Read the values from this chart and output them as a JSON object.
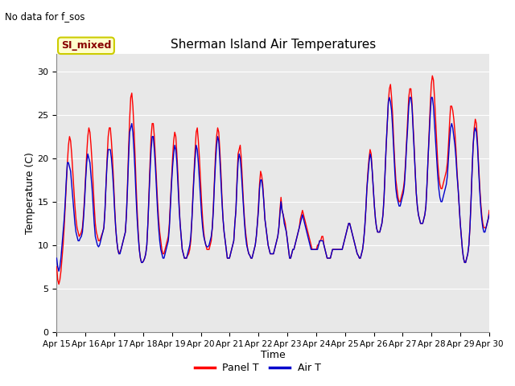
{
  "title": "Sherman Island Air Temperatures",
  "subtitle": "No data for f_sos",
  "xlabel": "Time",
  "ylabel": "Temperature (C)",
  "ylim": [
    0,
    32
  ],
  "yticks": [
    0,
    5,
    10,
    15,
    20,
    25,
    30
  ],
  "bg_color": "#e8e8e8",
  "fig_color": "#ffffff",
  "line1_color": "#ff0000",
  "line2_color": "#0000cc",
  "legend_label1": "Panel T",
  "legend_label2": "Air T",
  "box_label": "SI_mixed",
  "box_facecolor": "#ffffcc",
  "box_edgecolor": "#cccc00",
  "box_text_color": "#880000",
  "x_tick_labels": [
    "Apr 15",
    "Apr 16",
    "Apr 17",
    "Apr 18",
    "Apr 19",
    "Apr 20",
    "Apr 21",
    "Apr 22",
    "Apr 23",
    "Apr 24",
    "Apr 25",
    "Apr 26",
    "Apr 27",
    "Apr 28",
    "Apr 29",
    "Apr 30"
  ],
  "panel_T": [
    7.5,
    6.0,
    5.5,
    6.0,
    7.0,
    8.5,
    10.0,
    12.0,
    14.5,
    17.0,
    19.5,
    21.5,
    22.5,
    22.0,
    20.5,
    18.5,
    16.5,
    14.5,
    13.0,
    12.0,
    11.5,
    11.0,
    11.2,
    11.5,
    12.0,
    13.5,
    15.5,
    18.0,
    20.5,
    22.5,
    23.5,
    23.0,
    21.5,
    19.5,
    17.0,
    14.5,
    12.5,
    11.5,
    11.0,
    10.5,
    10.5,
    10.8,
    11.2,
    11.5,
    12.0,
    14.0,
    17.0,
    20.0,
    22.5,
    23.5,
    23.5,
    22.0,
    20.0,
    17.5,
    14.5,
    12.0,
    10.5,
    9.5,
    9.0,
    9.2,
    9.5,
    10.0,
    10.5,
    11.0,
    11.5,
    13.5,
    17.0,
    21.0,
    24.5,
    27.0,
    27.5,
    26.0,
    23.5,
    20.5,
    17.0,
    14.0,
    11.5,
    9.5,
    8.5,
    8.0,
    8.0,
    8.2,
    8.5,
    9.0,
    10.0,
    12.5,
    16.0,
    19.5,
    22.5,
    24.0,
    24.0,
    22.5,
    20.0,
    17.5,
    15.0,
    13.0,
    11.5,
    10.5,
    9.5,
    9.0,
    9.0,
    9.5,
    10.0,
    10.5,
    11.0,
    12.5,
    15.0,
    17.5,
    20.0,
    22.0,
    23.0,
    22.5,
    20.5,
    18.0,
    15.0,
    12.5,
    11.0,
    9.5,
    9.0,
    8.5,
    8.5,
    8.5,
    8.8,
    9.0,
    9.5,
    10.5,
    13.0,
    16.0,
    18.5,
    21.0,
    23.0,
    23.5,
    22.0,
    20.0,
    17.5,
    15.0,
    13.0,
    11.5,
    10.5,
    10.0,
    9.5,
    9.5,
    9.5,
    10.0,
    10.5,
    12.0,
    14.5,
    17.5,
    20.5,
    22.5,
    23.5,
    23.0,
    21.0,
    18.5,
    15.5,
    13.0,
    11.5,
    10.5,
    9.5,
    8.5,
    8.5,
    8.5,
    9.0,
    9.5,
    10.0,
    10.5,
    12.5,
    14.0,
    17.5,
    20.5,
    21.0,
    21.5,
    20.0,
    17.5,
    15.0,
    13.0,
    11.5,
    10.5,
    9.5,
    9.0,
    8.8,
    8.5,
    8.5,
    9.0,
    9.5,
    10.0,
    11.0,
    12.5,
    14.5,
    17.0,
    18.5,
    18.0,
    17.0,
    15.0,
    13.0,
    12.0,
    11.0,
    10.0,
    9.5,
    9.0,
    9.0,
    9.0,
    9.0,
    9.5,
    10.0,
    10.5,
    11.0,
    12.0,
    14.0,
    15.5,
    14.0,
    13.5,
    13.0,
    12.5,
    11.5,
    10.5,
    9.5,
    8.5,
    8.5,
    9.0,
    9.5,
    9.5,
    10.0,
    10.5,
    11.0,
    11.5,
    12.0,
    13.0,
    13.5,
    14.0,
    13.5,
    13.0,
    12.5,
    12.0,
    11.5,
    11.0,
    10.5,
    10.0,
    9.5,
    9.5,
    9.5,
    9.5,
    9.5,
    10.0,
    10.0,
    10.5,
    10.5,
    11.0,
    11.0,
    10.0,
    9.5,
    9.0,
    8.5,
    8.5,
    8.5,
    8.5,
    9.0,
    9.5,
    9.5,
    9.5,
    9.5,
    9.5,
    9.5,
    9.5,
    9.5,
    9.5,
    9.5,
    10.0,
    10.5,
    11.0,
    11.5,
    12.0,
    12.5,
    12.5,
    12.0,
    11.5,
    11.0,
    10.5,
    10.0,
    9.5,
    9.0,
    8.8,
    8.5,
    8.5,
    9.0,
    9.5,
    10.5,
    12.0,
    14.0,
    16.5,
    18.5,
    20.0,
    21.0,
    20.5,
    18.5,
    16.5,
    14.5,
    13.0,
    12.0,
    11.5,
    11.5,
    11.5,
    12.0,
    12.5,
    13.5,
    15.5,
    18.5,
    21.5,
    24.0,
    26.5,
    28.0,
    28.5,
    27.0,
    25.0,
    22.0,
    19.5,
    17.5,
    16.5,
    15.5,
    15.0,
    15.0,
    15.5,
    16.0,
    16.5,
    17.5,
    19.5,
    22.0,
    24.5,
    27.0,
    28.0,
    28.0,
    26.5,
    24.0,
    21.5,
    18.5,
    16.0,
    14.5,
    13.5,
    13.0,
    12.5,
    12.5,
    12.5,
    13.0,
    13.5,
    14.5,
    17.0,
    20.0,
    23.0,
    26.0,
    28.5,
    29.5,
    29.0,
    27.0,
    24.5,
    22.0,
    19.5,
    18.0,
    17.0,
    16.5,
    16.5,
    17.0,
    17.5,
    18.0,
    18.5,
    19.5,
    21.5,
    24.0,
    26.0,
    26.0,
    25.5,
    24.5,
    23.0,
    21.0,
    18.5,
    16.5,
    14.5,
    12.5,
    11.0,
    9.5,
    8.5,
    8.0,
    8.0,
    8.5,
    9.0,
    10.0,
    12.0,
    15.0,
    18.5,
    21.5,
    23.5,
    24.5,
    24.0,
    22.0,
    19.5,
    17.0,
    15.0,
    13.5,
    12.5,
    12.0,
    12.0,
    12.0,
    12.5,
    13.0,
    14.0
  ],
  "air_T": [
    8.5,
    7.5,
    7.0,
    7.5,
    8.5,
    10.0,
    11.5,
    13.0,
    15.0,
    17.5,
    19.5,
    19.5,
    19.0,
    18.5,
    17.0,
    15.5,
    14.0,
    12.5,
    11.5,
    11.0,
    10.5,
    10.5,
    10.8,
    11.0,
    11.5,
    13.0,
    15.0,
    17.5,
    19.5,
    20.5,
    20.0,
    19.5,
    18.0,
    16.5,
    14.5,
    12.5,
    11.0,
    10.5,
    10.0,
    9.8,
    10.0,
    10.5,
    11.0,
    11.5,
    12.0,
    14.0,
    17.0,
    19.5,
    21.0,
    21.0,
    21.0,
    20.0,
    18.5,
    16.5,
    14.0,
    12.0,
    10.5,
    9.5,
    9.0,
    9.0,
    9.5,
    10.0,
    10.5,
    11.0,
    11.5,
    13.5,
    16.5,
    20.0,
    23.0,
    23.5,
    24.0,
    23.0,
    21.0,
    18.5,
    15.5,
    13.0,
    11.0,
    9.5,
    8.5,
    8.0,
    8.0,
    8.2,
    8.5,
    9.0,
    10.0,
    12.5,
    15.5,
    18.5,
    21.0,
    22.5,
    22.5,
    21.0,
    19.0,
    16.5,
    14.0,
    12.0,
    10.5,
    9.5,
    9.0,
    8.5,
    8.5,
    9.0,
    9.5,
    10.0,
    10.5,
    12.0,
    14.5,
    17.0,
    19.0,
    20.5,
    21.5,
    21.0,
    19.5,
    17.0,
    14.5,
    12.5,
    11.0,
    9.5,
    9.0,
    8.5,
    8.5,
    8.5,
    9.0,
    9.5,
    10.0,
    11.0,
    13.0,
    15.5,
    18.0,
    20.0,
    21.5,
    21.0,
    19.5,
    17.5,
    15.5,
    13.5,
    12.0,
    11.0,
    10.5,
    10.0,
    9.8,
    9.8,
    10.0,
    10.5,
    11.0,
    12.0,
    14.0,
    17.0,
    19.5,
    21.5,
    22.5,
    22.0,
    20.0,
    17.5,
    15.0,
    13.0,
    11.5,
    10.5,
    9.5,
    8.5,
    8.5,
    8.5,
    9.0,
    9.5,
    10.0,
    10.5,
    12.5,
    14.0,
    17.0,
    19.5,
    20.5,
    20.0,
    18.5,
    16.5,
    14.5,
    12.5,
    11.0,
    10.0,
    9.5,
    9.0,
    8.8,
    8.5,
    8.5,
    9.0,
    9.5,
    10.0,
    11.0,
    12.5,
    14.0,
    16.5,
    17.5,
    17.5,
    16.5,
    15.0,
    13.0,
    12.0,
    11.0,
    10.0,
    9.5,
    9.0,
    9.0,
    9.0,
    9.0,
    9.5,
    10.0,
    10.5,
    11.0,
    12.0,
    13.5,
    15.0,
    14.0,
    13.5,
    12.5,
    12.0,
    11.5,
    10.5,
    9.5,
    8.5,
    8.5,
    9.0,
    9.5,
    9.5,
    10.0,
    10.5,
    11.0,
    11.5,
    12.0,
    12.5,
    13.0,
    13.5,
    13.0,
    12.5,
    12.0,
    11.5,
    11.0,
    10.5,
    10.0,
    9.5,
    9.5,
    9.5,
    9.5,
    9.5,
    9.5,
    9.5,
    10.0,
    10.5,
    10.5,
    10.5,
    10.5,
    10.0,
    9.5,
    9.0,
    8.5,
    8.5,
    8.5,
    8.5,
    9.0,
    9.5,
    9.5,
    9.5,
    9.5,
    9.5,
    9.5,
    9.5,
    9.5,
    9.5,
    9.5,
    10.0,
    10.5,
    11.0,
    11.5,
    12.0,
    12.5,
    12.5,
    12.0,
    11.5,
    11.0,
    10.5,
    10.0,
    9.5,
    9.0,
    8.8,
    8.5,
    8.5,
    9.0,
    9.5,
    10.5,
    12.0,
    14.0,
    16.5,
    18.0,
    19.5,
    20.5,
    20.0,
    18.5,
    16.5,
    14.5,
    13.0,
    12.0,
    11.5,
    11.5,
    11.5,
    12.0,
    12.5,
    13.5,
    15.5,
    18.5,
    21.5,
    24.0,
    26.5,
    27.0,
    26.5,
    25.5,
    23.5,
    21.0,
    18.5,
    16.5,
    15.5,
    15.0,
    14.5,
    14.5,
    15.0,
    15.5,
    16.0,
    17.0,
    19.0,
    21.5,
    23.5,
    26.0,
    27.0,
    27.0,
    26.0,
    23.5,
    21.0,
    18.5,
    16.0,
    14.5,
    13.5,
    13.0,
    12.5,
    12.5,
    12.5,
    13.0,
    13.5,
    14.5,
    17.0,
    20.0,
    22.5,
    25.0,
    27.0,
    27.0,
    26.0,
    24.0,
    22.0,
    20.0,
    18.0,
    16.5,
    15.5,
    15.0,
    15.0,
    15.5,
    16.0,
    16.5,
    17.0,
    18.0,
    20.0,
    22.0,
    23.5,
    24.0,
    23.5,
    22.5,
    21.5,
    20.0,
    18.0,
    16.5,
    14.5,
    12.5,
    11.0,
    9.5,
    8.5,
    8.0,
    8.0,
    8.5,
    9.0,
    10.0,
    12.0,
    15.0,
    18.5,
    21.5,
    23.0,
    23.5,
    23.0,
    21.5,
    19.0,
    16.5,
    14.5,
    13.0,
    12.0,
    11.5,
    11.5,
    12.0,
    12.5,
    13.0,
    13.5
  ]
}
